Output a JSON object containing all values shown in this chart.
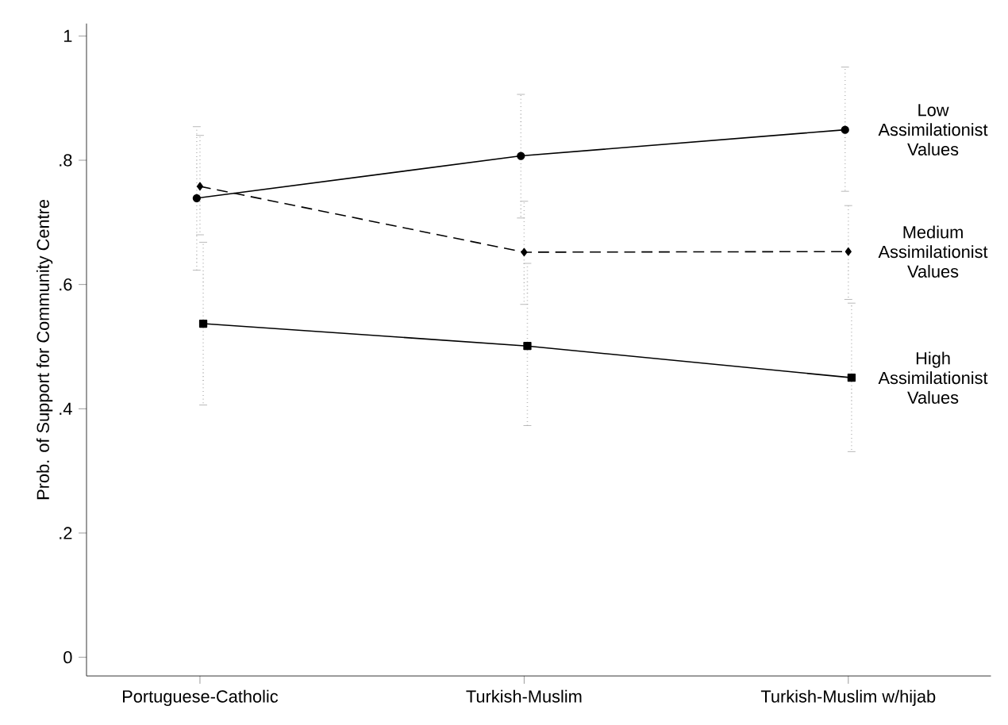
{
  "chart_data": {
    "type": "line",
    "ylabel": "Prob. of Support for Community Centre",
    "categories": [
      "Portuguese-Catholic",
      "Turkish-Muslim",
      "Turkish-Muslim w/hijab"
    ],
    "ylim": [
      -0.03,
      1.02
    ],
    "yticks": [
      {
        "value": 0,
        "label": "0"
      },
      {
        "value": 0.2,
        "label": ".2"
      },
      {
        "value": 0.4,
        "label": ".4"
      },
      {
        "value": 0.6,
        "label": ".6"
      },
      {
        "value": 0.8,
        "label": ".8"
      },
      {
        "value": 1,
        "label": "1"
      }
    ],
    "grid": false,
    "legend": false,
    "series": [
      {
        "name": "Low Assimilationist Values",
        "color": "#000000",
        "marker": "circle",
        "line_style": "solid",
        "values": [
          0.739,
          0.807,
          0.849
        ],
        "errors": [
          [
            0.623,
            0.854
          ],
          [
            0.707,
            0.906
          ],
          [
            0.75,
            0.95
          ]
        ]
      },
      {
        "name": "Medium Assimilationist Values",
        "color": "#000000",
        "marker": "diamond",
        "line_style": "dashed",
        "values": [
          0.758,
          0.652,
          0.653
        ],
        "errors": [
          [
            0.68,
            0.84
          ],
          [
            0.568,
            0.734
          ],
          [
            0.576,
            0.727
          ]
        ]
      },
      {
        "name": "High Assimilationist Values",
        "color": "#000000",
        "marker": "square",
        "line_style": "solid",
        "values": [
          0.537,
          0.501,
          0.45
        ],
        "errors": [
          [
            0.406,
            0.668
          ],
          [
            0.373,
            0.634
          ],
          [
            0.331,
            0.57
          ]
        ]
      }
    ]
  }
}
